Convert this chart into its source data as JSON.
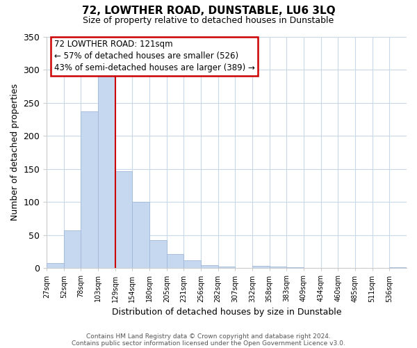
{
  "title": "72, LOWTHER ROAD, DUNSTABLE, LU6 3LQ",
  "subtitle": "Size of property relative to detached houses in Dunstable",
  "xlabel": "Distribution of detached houses by size in Dunstable",
  "ylabel": "Number of detached properties",
  "bar_labels": [
    "27sqm",
    "52sqm",
    "78sqm",
    "103sqm",
    "129sqm",
    "154sqm",
    "180sqm",
    "205sqm",
    "231sqm",
    "256sqm",
    "282sqm",
    "307sqm",
    "332sqm",
    "358sqm",
    "383sqm",
    "409sqm",
    "434sqm",
    "460sqm",
    "485sqm",
    "511sqm",
    "536sqm"
  ],
  "bar_values": [
    8,
    57,
    237,
    291,
    147,
    100,
    42,
    21,
    12,
    5,
    2,
    0,
    3,
    2,
    1,
    0,
    0,
    0,
    0,
    0,
    1
  ],
  "bar_color": "#c5d8f0",
  "bar_edge_color": "#a0b8d8",
  "vline_x": 4,
  "vline_color": "#cc0000",
  "ylim": [
    0,
    350
  ],
  "yticks": [
    0,
    50,
    100,
    150,
    200,
    250,
    300,
    350
  ],
  "annotation_title": "72 LOWTHER ROAD: 121sqm",
  "annotation_line1": "← 57% of detached houses are smaller (526)",
  "annotation_line2": "43% of semi-detached houses are larger (389) →",
  "annotation_box_color": "#ffffff",
  "annotation_box_edge": "#cc0000",
  "footer1": "Contains HM Land Registry data © Crown copyright and database right 2024.",
  "footer2": "Contains public sector information licensed under the Open Government Licence v3.0.",
  "background_color": "#ffffff",
  "grid_color": "#c8d8e8"
}
